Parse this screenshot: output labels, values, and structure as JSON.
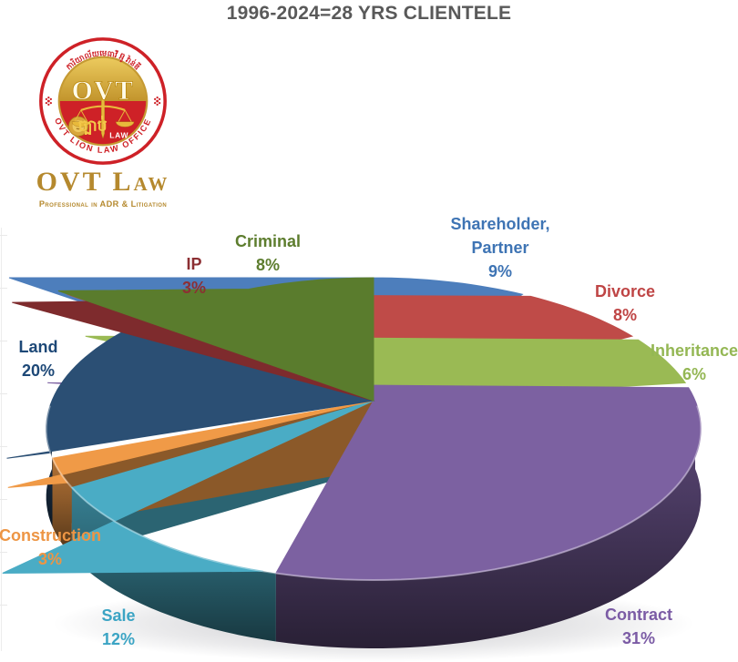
{
  "title": "1996-2024=28 YRS CLIENTELE",
  "logo": {
    "seal": {
      "arc_top": "ការិយាល័យមេធាវី អ៊ូ វ៉ាន់ឌី",
      "arc_bottom": "OVT LION LAW OFFICE",
      "monogram": "OVT",
      "center_khmer": "ច្បាប់",
      "law_label": "LAW",
      "ring_red": "#ce2127",
      "gold": "#c59a33"
    },
    "wordmark": "OVT Law",
    "tagline": "Professional in ADR & Litigation",
    "gold_text": "#b5892e"
  },
  "chart_data": {
    "type": "pie",
    "style": "3d",
    "title": "1996-2024=28 YRS CLIENTELE",
    "start_angle_deg": 0,
    "direction": "clockwise",
    "legend": "none",
    "title_color": "#595959",
    "slices": [
      {
        "label": "Shareholder,\nPartner",
        "value": 9,
        "color": "#4d7ebc",
        "label_color": "#3e74b4"
      },
      {
        "label": "Divorce",
        "value": 8,
        "color": "#bf4b48",
        "label_color": "#bf4545"
      },
      {
        "label": "Inheritance",
        "value": 6,
        "color": "#9aba54",
        "label_color": "#94b754"
      },
      {
        "label": "Contract",
        "value": 31,
        "color": "#7c61a1",
        "label_color": "#7b5ba5"
      },
      {
        "label": "Sale",
        "value": 12,
        "color": "#4aacc5",
        "label_color": "#3ba4c4"
      },
      {
        "label": "Construction",
        "value": 3,
        "color": "#f09a47",
        "label_color": "#ed9544"
      },
      {
        "label": "Land",
        "value": 20,
        "color": "#2b4f74",
        "label_color": "#1d4877"
      },
      {
        "label": "IP",
        "value": 3,
        "color": "#7e2b2d",
        "label_color": "#8c2f33"
      },
      {
        "label": "Criminal",
        "value": 8,
        "color": "#5a7c2d",
        "label_color": "#5d7d2e"
      }
    ]
  }
}
